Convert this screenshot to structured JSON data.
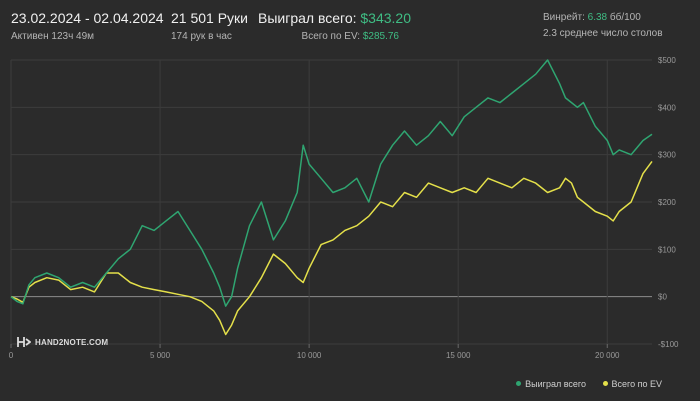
{
  "header": {
    "date_range": "23.02.2024 - 02.04.2024",
    "active_time": "Активен 123ч 49м",
    "hands": "21 501 Руки",
    "hands_per_hour": "174 рук в час",
    "won_label": "Выиграл всего:",
    "won_value": "$343.20",
    "ev_label": "Всего по EV:",
    "ev_value": "$285.76",
    "winrate_label": "Винрейт:",
    "winrate_value": "6.38",
    "winrate_suffix": "бб/100",
    "tables": "2.3 среднее число столов"
  },
  "logo": {
    "text": "HAND2NOTE.COM"
  },
  "legend": {
    "won": "Выиграл всего",
    "ev": "Всего по EV"
  },
  "colors": {
    "won": "#2fa571",
    "ev": "#e4e04a",
    "background": "#2b2b2b",
    "grid": "#3c3c3c",
    "zero": "#8c8c8c"
  },
  "chart_data": {
    "type": "line",
    "x_range": [
      0,
      21501
    ],
    "y_range": [
      -100,
      500
    ],
    "x_ticks": [
      0,
      5000,
      10000,
      15000,
      20000
    ],
    "x_tick_labels": [
      "0",
      "5 000",
      "10 000",
      "15 000",
      "20 000"
    ],
    "y_ticks": [
      500,
      400,
      300,
      200,
      100,
      0,
      -100
    ],
    "y_tick_labels": [
      "$500",
      "$400",
      "$300",
      "$200",
      "$100",
      "$0",
      "-$100"
    ],
    "series": [
      {
        "name": "Выиграл всего",
        "x": [
          0,
          200,
          400,
          600,
          800,
          1200,
          1600,
          2000,
          2400,
          2800,
          3200,
          3600,
          4000,
          4400,
          4800,
          5200,
          5600,
          6000,
          6400,
          6800,
          7000,
          7200,
          7400,
          7600,
          8000,
          8400,
          8800,
          9200,
          9600,
          9800,
          10000,
          10400,
          10800,
          11200,
          11600,
          12000,
          12400,
          12800,
          13200,
          13600,
          14000,
          14400,
          14800,
          15200,
          15600,
          16000,
          16400,
          16800,
          17200,
          17600,
          18000,
          18400,
          18600,
          18800,
          19000,
          19200,
          19600,
          20000,
          20200,
          20400,
          20800,
          21200,
          21501
        ],
        "values": [
          0,
          -10,
          -15,
          25,
          40,
          50,
          40,
          20,
          30,
          20,
          50,
          80,
          100,
          150,
          140,
          160,
          180,
          140,
          100,
          50,
          20,
          -20,
          0,
          60,
          150,
          200,
          120,
          160,
          220,
          320,
          280,
          250,
          220,
          230,
          250,
          200,
          280,
          320,
          350,
          320,
          340,
          370,
          340,
          380,
          400,
          420,
          410,
          430,
          450,
          470,
          500,
          450,
          420,
          410,
          400,
          410,
          360,
          330,
          300,
          310,
          300,
          330,
          343.2
        ]
      },
      {
        "name": "Всего по EV",
        "x": [
          0,
          200,
          400,
          600,
          800,
          1200,
          1600,
          2000,
          2400,
          2800,
          3200,
          3600,
          4000,
          4400,
          4800,
          5200,
          5600,
          6000,
          6400,
          6800,
          7000,
          7200,
          7400,
          7600,
          8000,
          8400,
          8800,
          9200,
          9600,
          9800,
          10000,
          10400,
          10800,
          11200,
          11600,
          12000,
          12400,
          12800,
          13200,
          13600,
          14000,
          14400,
          14800,
          15200,
          15600,
          16000,
          16400,
          16800,
          17200,
          17600,
          18000,
          18400,
          18600,
          18800,
          19000,
          19200,
          19600,
          20000,
          20200,
          20400,
          20800,
          21200,
          21501
        ],
        "values": [
          0,
          -5,
          -12,
          20,
          30,
          40,
          35,
          15,
          20,
          10,
          50,
          50,
          30,
          20,
          15,
          10,
          5,
          0,
          -10,
          -30,
          -50,
          -80,
          -60,
          -30,
          0,
          40,
          90,
          70,
          40,
          30,
          60,
          110,
          120,
          140,
          150,
          170,
          200,
          190,
          220,
          210,
          240,
          230,
          220,
          230,
          220,
          250,
          240,
          230,
          250,
          240,
          220,
          230,
          250,
          240,
          210,
          200,
          180,
          170,
          160,
          180,
          200,
          260,
          285.76
        ]
      }
    ]
  }
}
